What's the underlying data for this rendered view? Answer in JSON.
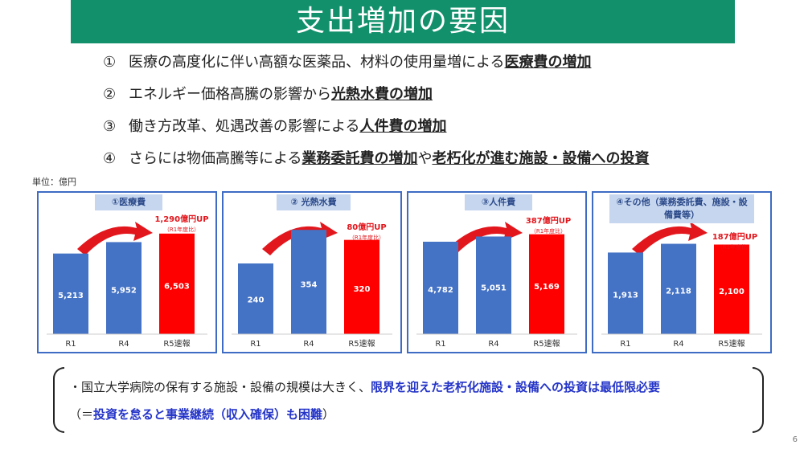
{
  "title": "支出増加の要因",
  "causes": [
    {
      "num": "①",
      "text": "医療の高度化に伴い高額な医薬品、材料の使用量増による",
      "emph": "医療費の増加",
      "tail": ""
    },
    {
      "num": "②",
      "text": "エネルギー価格高騰の影響から",
      "emph": "光熱水費の増加",
      "tail": ""
    },
    {
      "num": "③",
      "text": "働き方改革、処遇改善の影響による",
      "emph": "人件費の増加",
      "tail": ""
    },
    {
      "num": "④",
      "text": "さらには物価高騰等による",
      "emph": "業務委託費の増加",
      "tail": "や",
      "emph2": "老朽化が進む施設・設備への投資"
    }
  ],
  "unit": "単位：億円",
  "colors": {
    "title_bg": "#12906b",
    "bar_blue": "#4472c4",
    "bar_red": "#ff0000",
    "panel_border": "#3e6bc4",
    "accent_red": "#e2171d",
    "emph_blue": "#2434c8"
  },
  "chart_data": [
    {
      "type": "bar",
      "title": "①医療費",
      "categories": [
        "R1",
        "R4",
        "R5速報"
      ],
      "values": [
        5213,
        5952,
        6503
      ],
      "labels": [
        "5,213",
        "5,952",
        "6,503"
      ],
      "bar_colors": [
        "blue",
        "blue",
        "red"
      ],
      "ylim": [
        0,
        8000
      ],
      "annotation": "1,290億円UP",
      "annotation_sub": "（R1年度比）"
    },
    {
      "type": "bar",
      "title": "② 光熱水費",
      "categories": [
        "R1",
        "R4",
        "R5速報"
      ],
      "values": [
        240,
        354,
        320
      ],
      "labels": [
        "240",
        "354",
        "320"
      ],
      "bar_colors": [
        "blue",
        "blue",
        "red"
      ],
      "ylim": [
        0,
        420
      ],
      "annotation": "80億円UP",
      "annotation_sub": "（R1年度比）"
    },
    {
      "type": "bar",
      "title": "③人件費",
      "categories": [
        "R1",
        "R4",
        "R5速報"
      ],
      "values": [
        4782,
        5051,
        5169
      ],
      "labels": [
        "4,782",
        "5,051",
        "5,169"
      ],
      "bar_colors": [
        "blue",
        "blue",
        "red"
      ],
      "ylim": [
        0,
        6400
      ],
      "annotation": "387億円UP",
      "annotation_sub": "（R1年度比）"
    },
    {
      "type": "bar",
      "title": "④その他（業務委託費、施設・設備費等）",
      "categories": [
        "R1",
        "R4",
        "R5速報"
      ],
      "values": [
        1913,
        2118,
        2100
      ],
      "labels": [
        "1,913",
        "2,118",
        "2,100"
      ],
      "bar_colors": [
        "blue",
        "blue",
        "red"
      ],
      "ylim": [
        0,
        2900
      ],
      "annotation": "187億円UP",
      "annotation_sub": "（R1年度比）"
    }
  ],
  "note": {
    "line1_plain": "・国立大学病院の保有する施設・設備の規模は大きく、",
    "line1_emph": "限界を迎えた老朽化施設・設備への投資は最低限必要",
    "line2_open": "（＝",
    "line2_emph": "投資を怠ると事業継続（収入確保）も困難",
    "line2_close": "）"
  },
  "page_number": "6"
}
